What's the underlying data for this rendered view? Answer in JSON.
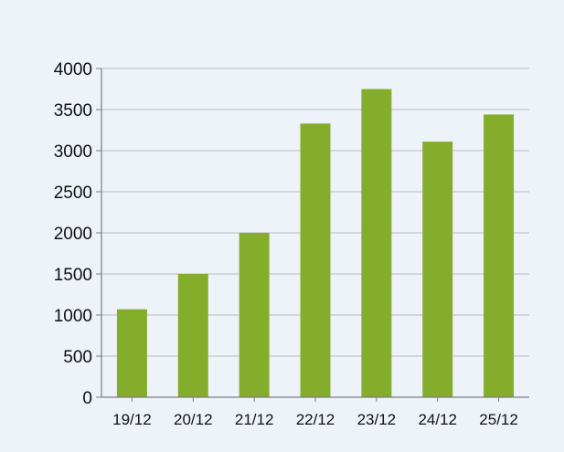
{
  "chart_data": {
    "type": "bar",
    "title": "",
    "xlabel": "",
    "ylabel": "",
    "categories": [
      "19/12",
      "20/12",
      "21/12",
      "22/12",
      "23/12",
      "24/12",
      "25/12"
    ],
    "values": [
      1070,
      1500,
      2000,
      3330,
      3750,
      3110,
      3440
    ],
    "ylim": [
      0,
      4000
    ],
    "yticks": [
      0,
      500,
      1000,
      1500,
      2000,
      2500,
      3000,
      3500,
      4000
    ],
    "grid": true,
    "legend": "none",
    "colors": {
      "bar": "#84ad2b",
      "grid": "#b9b9b9",
      "axis": "#7d7d7d",
      "background": "#eef3fa"
    }
  }
}
